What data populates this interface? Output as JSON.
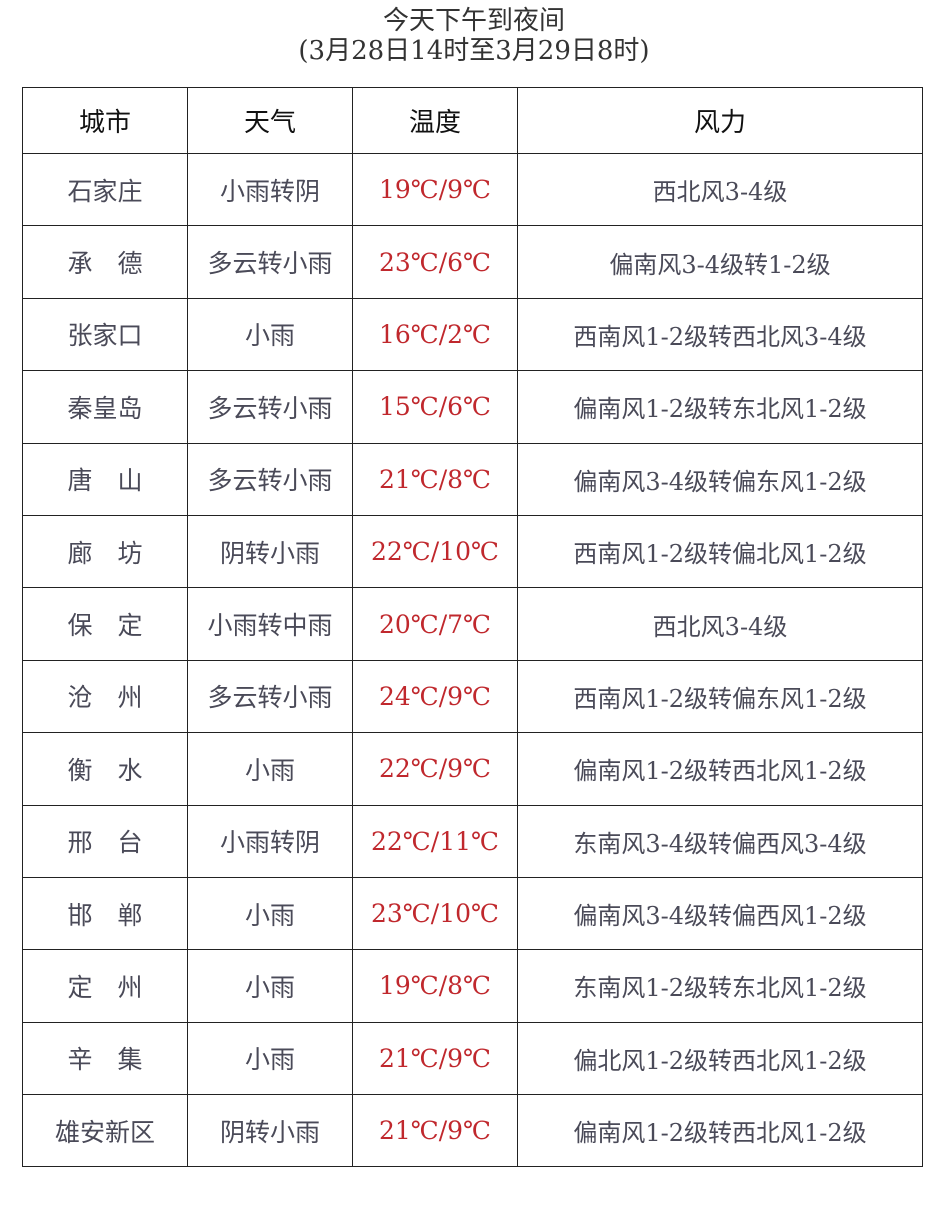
{
  "title": "今天下午到夜间",
  "subtitle": "(3月28日14时至3月29日8时)",
  "colors": {
    "temperature": "#c0282d",
    "text": "#4a4a58"
  },
  "table": {
    "headers": [
      "城市",
      "天气",
      "温度",
      "风力"
    ],
    "rows": [
      [
        "石家庄",
        "小雨转阴",
        "19℃/9℃",
        "西北风3-4级"
      ],
      [
        "承　德",
        "多云转小雨",
        "23℃/6℃",
        "偏南风3-4级转1-2级"
      ],
      [
        "张家口",
        "小雨",
        "16℃/2℃",
        "西南风1-2级转西北风3-4级"
      ],
      [
        "秦皇岛",
        "多云转小雨",
        "15℃/6℃",
        "偏南风1-2级转东北风1-2级"
      ],
      [
        "唐　山",
        "多云转小雨",
        "21℃/8℃",
        "偏南风3-4级转偏东风1-2级"
      ],
      [
        "廊　坊",
        "阴转小雨",
        "22℃/10℃",
        "西南风1-2级转偏北风1-2级"
      ],
      [
        "保　定",
        "小雨转中雨",
        "20℃/7℃",
        "西北风3-4级"
      ],
      [
        "沧　州",
        "多云转小雨",
        "24℃/9℃",
        "西南风1-2级转偏东风1-2级"
      ],
      [
        "衡　水",
        "小雨",
        "22℃/9℃",
        "偏南风1-2级转西北风1-2级"
      ],
      [
        "邢　台",
        "小雨转阴",
        "22℃/11℃",
        "东南风3-4级转偏西风3-4级"
      ],
      [
        "邯　郸",
        "小雨",
        "23℃/10℃",
        "偏南风3-4级转偏西风1-2级"
      ],
      [
        "定　州",
        "小雨",
        "19℃/8℃",
        "东南风1-2级转东北风1-2级"
      ],
      [
        "辛　集",
        "小雨",
        "21℃/9℃",
        "偏北风1-2级转西北风1-2级"
      ],
      [
        "雄安新区",
        "阴转小雨",
        "21℃/9℃",
        "偏南风1-2级转西北风1-2级"
      ]
    ]
  }
}
